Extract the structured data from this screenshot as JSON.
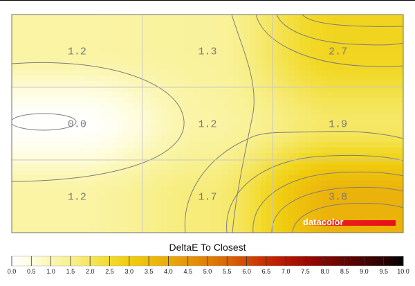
{
  "chart_data": {
    "type": "heatmap",
    "title": "DeltaE To Closest",
    "rows": 3,
    "cols": 3,
    "values": [
      [
        1.2,
        1.3,
        2.7
      ],
      [
        0.0,
        1.2,
        1.9
      ],
      [
        1.2,
        1.7,
        3.8
      ]
    ],
    "value_labels": [
      [
        "1.2",
        "1.3",
        "2.7"
      ],
      [
        "0.0",
        "1.2",
        "1.9"
      ],
      [
        "1.2",
        "1.7",
        "3.8"
      ]
    ],
    "scale_range": [
      0,
      10
    ],
    "scale_ticks": [
      "0.0",
      "0.5",
      "1.0",
      "1.5",
      "2.0",
      "2.5",
      "3.0",
      "3.5",
      "4.0",
      "4.5",
      "5.0",
      "5.5",
      "6.0",
      "6.5",
      "7.0",
      "7.5",
      "8.0",
      "8.5",
      "9.0",
      "9.5",
      "10.0"
    ],
    "colorscale": [
      [
        0.0,
        "#ffffff"
      ],
      [
        0.5,
        "#fefddf"
      ],
      [
        1.0,
        "#fbf6b3"
      ],
      [
        1.5,
        "#f8f08d"
      ],
      [
        2.0,
        "#f5e55c"
      ],
      [
        2.5,
        "#f2da2a"
      ],
      [
        3.0,
        "#f0cc10"
      ],
      [
        3.5,
        "#edbd0c"
      ],
      [
        4.0,
        "#e9aa0a"
      ],
      [
        4.5,
        "#e49508"
      ],
      [
        5.0,
        "#df7f07"
      ],
      [
        5.5,
        "#d96505"
      ],
      [
        6.0,
        "#d04904"
      ],
      [
        6.5,
        "#c42c03"
      ],
      [
        7.0,
        "#b31502"
      ],
      [
        7.5,
        "#9a0a02"
      ],
      [
        8.0,
        "#7f0702"
      ],
      [
        8.5,
        "#620502"
      ],
      [
        9.0,
        "#460302"
      ],
      [
        9.5,
        "#280202"
      ],
      [
        10.0,
        "#000000"
      ]
    ],
    "grid": true,
    "contours": true
  },
  "branding": {
    "logo_text": "datacolor",
    "logo_bar_color": "#e8101a"
  }
}
